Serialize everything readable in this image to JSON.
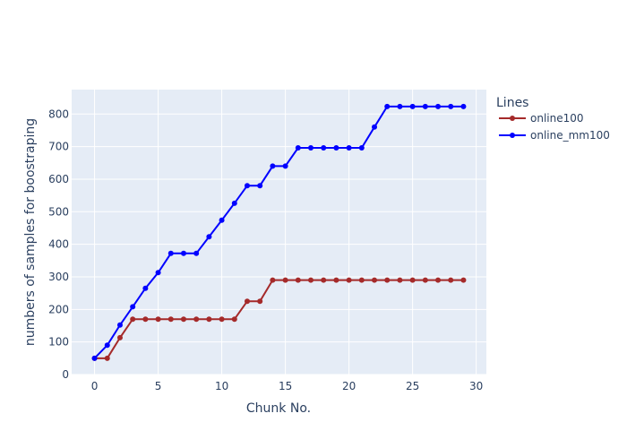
{
  "chart_data": {
    "type": "line",
    "xlabel": "Chunk No.",
    "ylabel": "numbers of samples for boostraping",
    "xlim": [
      -1.8,
      30.8
    ],
    "ylim": [
      0,
      875
    ],
    "xticks": [
      0,
      5,
      10,
      15,
      20,
      25,
      30
    ],
    "yticks": [
      0,
      100,
      200,
      300,
      400,
      500,
      600,
      700,
      800
    ],
    "grid": true,
    "legend": {
      "title": "Lines",
      "placement": "top-right"
    },
    "plot_bg": "#e5ecf6",
    "x": [
      0,
      1,
      2,
      3,
      4,
      5,
      6,
      7,
      8,
      9,
      10,
      11,
      12,
      13,
      14,
      15,
      16,
      17,
      18,
      19,
      20,
      21,
      22,
      23,
      24,
      25,
      26,
      27,
      28,
      29
    ],
    "series": [
      {
        "name": "online100",
        "color": "#a52a2a",
        "values": [
          50,
          50,
          113,
          170,
          170,
          170,
          170,
          170,
          170,
          170,
          170,
          170,
          225,
          225,
          290,
          290,
          290,
          290,
          290,
          290,
          290,
          290,
          290,
          290,
          290,
          290,
          290,
          290,
          290,
          290
        ]
      },
      {
        "name": "online_mm100",
        "color": "#0000ff",
        "values": [
          50,
          90,
          152,
          208,
          265,
          313,
          372,
          372,
          372,
          423,
          474,
          526,
          580,
          580,
          640,
          640,
          696,
          696,
          696,
          696,
          696,
          696,
          760,
          823,
          823,
          823,
          823,
          823,
          823,
          823
        ]
      }
    ]
  }
}
